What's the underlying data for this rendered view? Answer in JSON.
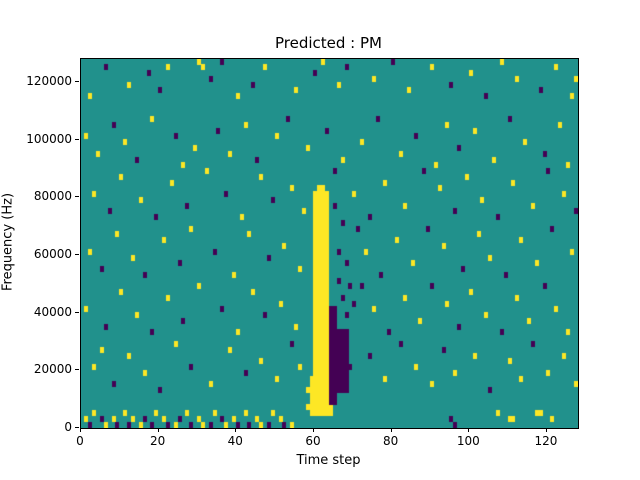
{
  "chart_data": {
    "type": "heatmap",
    "title": "Predicted : PM",
    "xlabel": "Time step",
    "ylabel": "Frequency (Hz)",
    "x_range": [
      0,
      128
    ],
    "y_range": [
      0,
      128000
    ],
    "x_ticks": [
      0,
      20,
      40,
      60,
      80,
      100,
      120
    ],
    "y_ticks": [
      0,
      20000,
      40000,
      60000,
      80000,
      100000,
      120000
    ],
    "grid": {
      "nx": 128,
      "ny": 64
    },
    "colors": {
      "mid": "#21918c",
      "high": "#fde725",
      "low": "#440154",
      "axis": "#000000",
      "background": "#ffffff"
    },
    "legend": "none",
    "streaks": [
      {
        "x0": 60,
        "x1": 63,
        "y0": 2,
        "y1": 40,
        "c": 1
      },
      {
        "x0": 59,
        "x1": 64,
        "y0": 2,
        "y1": 8,
        "c": 1
      },
      {
        "x0": 61,
        "x1": 62,
        "y0": 40,
        "y1": 41,
        "c": 1
      },
      {
        "x0": 64,
        "x1": 65,
        "y0": 4,
        "y1": 20,
        "c": 0
      },
      {
        "x0": 66,
        "x1": 68,
        "y0": 6,
        "y1": 16,
        "c": 0
      }
    ],
    "cells": [
      [
        2,
        57,
        1
      ],
      [
        6,
        62,
        0
      ],
      [
        12,
        59,
        1
      ],
      [
        17,
        61,
        0
      ],
      [
        20,
        58,
        0
      ],
      [
        22,
        62,
        1
      ],
      [
        30,
        63,
        1
      ],
      [
        31,
        62,
        1
      ],
      [
        33,
        60,
        0
      ],
      [
        36,
        63,
        0
      ],
      [
        40,
        57,
        1
      ],
      [
        44,
        59,
        0
      ],
      [
        47,
        62,
        1
      ],
      [
        55,
        58,
        1
      ],
      [
        60,
        61,
        0
      ],
      [
        62,
        63,
        1
      ],
      [
        66,
        59,
        1
      ],
      [
        68,
        62,
        0
      ],
      [
        75,
        60,
        1
      ],
      [
        80,
        63,
        0
      ],
      [
        84,
        58,
        1
      ],
      [
        90,
        62,
        1
      ],
      [
        95,
        59,
        0
      ],
      [
        100,
        61,
        1
      ],
      [
        104,
        57,
        0
      ],
      [
        108,
        63,
        1
      ],
      [
        112,
        60,
        1
      ],
      [
        118,
        58,
        0
      ],
      [
        122,
        62,
        1
      ],
      [
        126,
        57,
        1
      ],
      [
        127,
        60,
        1
      ],
      [
        1,
        50,
        1
      ],
      [
        4,
        47,
        1
      ],
      [
        8,
        52,
        0
      ],
      [
        11,
        49,
        1
      ],
      [
        14,
        46,
        0
      ],
      [
        18,
        53,
        1
      ],
      [
        24,
        50,
        0
      ],
      [
        26,
        45,
        1
      ],
      [
        29,
        48,
        1
      ],
      [
        35,
        51,
        0
      ],
      [
        38,
        47,
        1
      ],
      [
        42,
        52,
        1
      ],
      [
        45,
        46,
        0
      ],
      [
        50,
        50,
        1
      ],
      [
        53,
        53,
        0
      ],
      [
        58,
        48,
        1
      ],
      [
        63,
        51,
        0
      ],
      [
        67,
        46,
        1
      ],
      [
        72,
        49,
        1
      ],
      [
        76,
        53,
        0
      ],
      [
        82,
        47,
        1
      ],
      [
        86,
        50,
        0
      ],
      [
        91,
        45,
        1
      ],
      [
        94,
        52,
        1
      ],
      [
        97,
        48,
        0
      ],
      [
        101,
        51,
        1
      ],
      [
        106,
        46,
        1
      ],
      [
        110,
        53,
        0
      ],
      [
        114,
        49,
        1
      ],
      [
        119,
        47,
        0
      ],
      [
        123,
        52,
        1
      ],
      [
        125,
        45,
        1
      ],
      [
        3,
        40,
        1
      ],
      [
        7,
        37,
        0
      ],
      [
        10,
        43,
        1
      ],
      [
        15,
        39,
        1
      ],
      [
        19,
        36,
        0
      ],
      [
        23,
        42,
        1
      ],
      [
        27,
        38,
        0
      ],
      [
        32,
        44,
        1
      ],
      [
        37,
        40,
        0
      ],
      [
        41,
        36,
        1
      ],
      [
        46,
        43,
        1
      ],
      [
        49,
        39,
        0
      ],
      [
        54,
        41,
        1
      ],
      [
        57,
        37,
        1
      ],
      [
        65,
        44,
        0
      ],
      [
        70,
        40,
        1
      ],
      [
        74,
        36,
        0
      ],
      [
        78,
        42,
        1
      ],
      [
        83,
        38,
        1
      ],
      [
        88,
        44,
        0
      ],
      [
        92,
        41,
        1
      ],
      [
        96,
        37,
        0
      ],
      [
        99,
        43,
        1
      ],
      [
        103,
        39,
        1
      ],
      [
        107,
        36,
        0
      ],
      [
        111,
        42,
        1
      ],
      [
        116,
        38,
        1
      ],
      [
        120,
        44,
        0
      ],
      [
        124,
        40,
        1
      ],
      [
        127,
        37,
        0
      ],
      [
        2,
        30,
        1
      ],
      [
        5,
        27,
        0
      ],
      [
        9,
        33,
        1
      ],
      [
        13,
        29,
        1
      ],
      [
        16,
        26,
        0
      ],
      [
        21,
        32,
        1
      ],
      [
        25,
        28,
        0
      ],
      [
        28,
        34,
        1
      ],
      [
        34,
        30,
        0
      ],
      [
        39,
        26,
        1
      ],
      [
        43,
        33,
        1
      ],
      [
        48,
        29,
        0
      ],
      [
        52,
        31,
        1
      ],
      [
        56,
        27,
        1
      ],
      [
        71,
        34,
        0
      ],
      [
        73,
        30,
        1
      ],
      [
        77,
        26,
        0
      ],
      [
        81,
        32,
        1
      ],
      [
        85,
        28,
        1
      ],
      [
        89,
        34,
        0
      ],
      [
        93,
        31,
        1
      ],
      [
        98,
        27,
        0
      ],
      [
        102,
        33,
        1
      ],
      [
        105,
        29,
        1
      ],
      [
        109,
        26,
        0
      ],
      [
        113,
        32,
        1
      ],
      [
        117,
        28,
        1
      ],
      [
        121,
        34,
        0
      ],
      [
        126,
        30,
        1
      ],
      [
        1,
        20,
        1
      ],
      [
        6,
        17,
        0
      ],
      [
        10,
        23,
        1
      ],
      [
        14,
        19,
        1
      ],
      [
        18,
        16,
        0
      ],
      [
        22,
        22,
        1
      ],
      [
        26,
        18,
        0
      ],
      [
        30,
        24,
        1
      ],
      [
        36,
        20,
        0
      ],
      [
        40,
        16,
        1
      ],
      [
        44,
        23,
        1
      ],
      [
        47,
        19,
        0
      ],
      [
        51,
        21,
        1
      ],
      [
        55,
        17,
        1
      ],
      [
        72,
        24,
        0
      ],
      [
        75,
        20,
        1
      ],
      [
        79,
        16,
        0
      ],
      [
        83,
        22,
        1
      ],
      [
        87,
        18,
        1
      ],
      [
        90,
        24,
        0
      ],
      [
        94,
        21,
        1
      ],
      [
        97,
        17,
        0
      ],
      [
        100,
        23,
        1
      ],
      [
        104,
        19,
        1
      ],
      [
        108,
        16,
        0
      ],
      [
        112,
        22,
        1
      ],
      [
        115,
        18,
        1
      ],
      [
        119,
        24,
        0
      ],
      [
        122,
        20,
        1
      ],
      [
        125,
        16,
        1
      ],
      [
        3,
        10,
        1
      ],
      [
        5,
        13,
        1
      ],
      [
        8,
        7,
        0
      ],
      [
        12,
        12,
        1
      ],
      [
        16,
        9,
        1
      ],
      [
        20,
        6,
        0
      ],
      [
        24,
        14,
        1
      ],
      [
        28,
        10,
        0
      ],
      [
        33,
        7,
        1
      ],
      [
        38,
        13,
        1
      ],
      [
        42,
        9,
        0
      ],
      [
        46,
        11,
        1
      ],
      [
        50,
        8,
        1
      ],
      [
        54,
        14,
        0
      ],
      [
        56,
        10,
        1
      ],
      [
        58,
        6,
        1
      ],
      [
        74,
        12,
        0
      ],
      [
        78,
        8,
        1
      ],
      [
        82,
        14,
        0
      ],
      [
        86,
        10,
        1
      ],
      [
        90,
        7,
        1
      ],
      [
        93,
        13,
        0
      ],
      [
        96,
        9,
        1
      ],
      [
        101,
        12,
        1
      ],
      [
        105,
        6,
        0
      ],
      [
        110,
        11,
        1
      ],
      [
        113,
        8,
        1
      ],
      [
        116,
        14,
        0
      ],
      [
        120,
        9,
        1
      ],
      [
        124,
        12,
        1
      ],
      [
        127,
        7,
        1
      ],
      [
        1,
        1,
        1
      ],
      [
        2,
        0,
        0
      ],
      [
        3,
        2,
        1
      ],
      [
        5,
        1,
        0
      ],
      [
        6,
        0,
        1
      ],
      [
        8,
        1,
        1
      ],
      [
        9,
        0,
        0
      ],
      [
        11,
        2,
        1
      ],
      [
        12,
        0,
        0
      ],
      [
        13,
        1,
        1
      ],
      [
        15,
        0,
        1
      ],
      [
        16,
        1,
        0
      ],
      [
        18,
        0,
        0
      ],
      [
        19,
        2,
        1
      ],
      [
        21,
        1,
        1
      ],
      [
        22,
        0,
        0
      ],
      [
        24,
        0,
        1
      ],
      [
        25,
        1,
        0
      ],
      [
        27,
        2,
        1
      ],
      [
        28,
        0,
        0
      ],
      [
        30,
        1,
        1
      ],
      [
        31,
        0,
        1
      ],
      [
        33,
        0,
        0
      ],
      [
        34,
        2,
        1
      ],
      [
        36,
        1,
        0
      ],
      [
        37,
        0,
        1
      ],
      [
        39,
        1,
        1
      ],
      [
        40,
        0,
        0
      ],
      [
        42,
        2,
        1
      ],
      [
        43,
        0,
        0
      ],
      [
        45,
        1,
        1
      ],
      [
        46,
        0,
        1
      ],
      [
        48,
        0,
        0
      ],
      [
        49,
        2,
        1
      ],
      [
        51,
        1,
        1
      ],
      [
        52,
        0,
        0
      ],
      [
        54,
        0,
        1
      ],
      [
        95,
        1,
        0
      ],
      [
        96,
        0,
        0
      ],
      [
        107,
        2,
        1
      ],
      [
        110,
        1,
        1
      ],
      [
        111,
        1,
        1
      ],
      [
        117,
        2,
        1
      ],
      [
        118,
        2,
        1
      ],
      [
        121,
        1,
        1
      ],
      [
        66,
        25,
        0
      ],
      [
        67,
        22,
        0
      ],
      [
        68,
        19,
        0
      ],
      [
        66,
        30,
        0
      ],
      [
        67,
        35,
        0
      ],
      [
        65,
        38,
        0
      ],
      [
        68,
        28,
        0
      ],
      [
        69,
        24,
        0
      ],
      [
        70,
        21,
        0
      ],
      [
        66,
        12,
        0
      ],
      [
        69,
        10,
        0
      ],
      [
        67,
        8,
        0
      ],
      [
        58,
        3,
        1
      ],
      [
        59,
        5,
        1
      ]
    ]
  }
}
